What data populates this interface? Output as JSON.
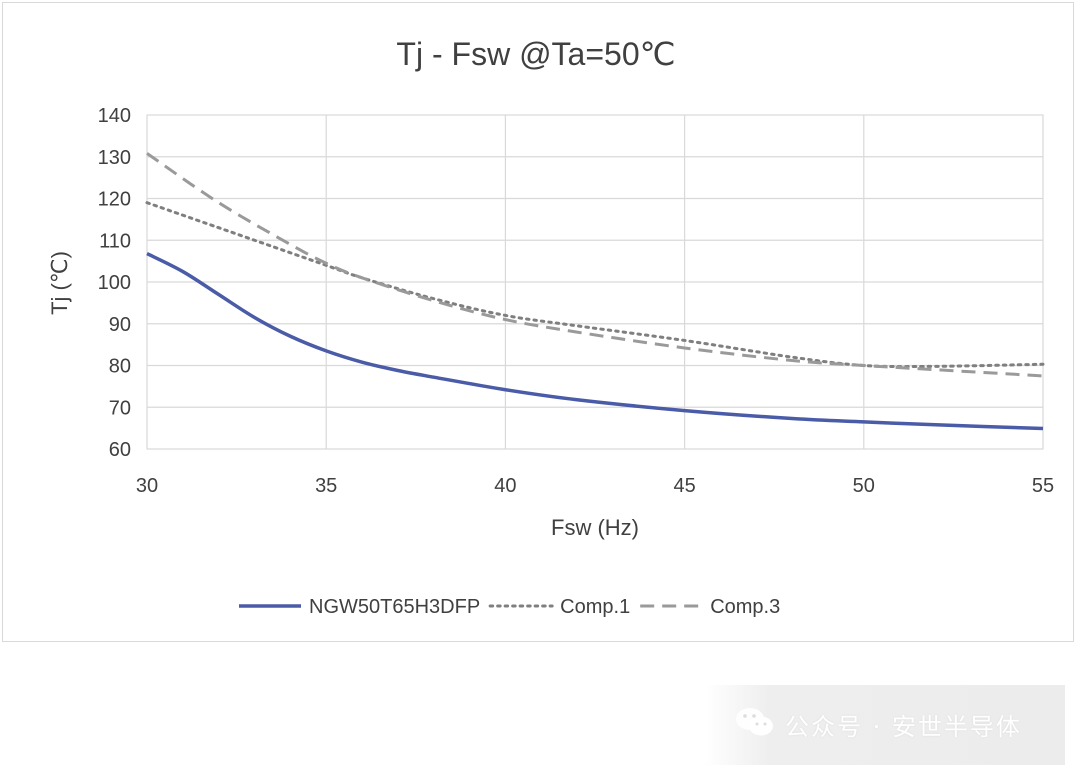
{
  "chart_data": {
    "type": "line",
    "title": "Tj - Fsw @Ta=50℃",
    "xlabel": "Fsw (Hz)",
    "ylabel": "Tj (℃)",
    "xlim": [
      30,
      55
    ],
    "ylim": [
      60,
      140
    ],
    "xticks": [
      30,
      35,
      40,
      45,
      50,
      55
    ],
    "yticks": [
      60,
      70,
      80,
      90,
      100,
      110,
      120,
      130,
      140
    ],
    "grid": true,
    "legend_position": "bottom",
    "series": [
      {
        "name": "NGW50T65H3DFP",
        "color": "#4a5ba8",
        "style": "solid",
        "x": [
          30,
          31,
          32,
          33,
          34,
          35,
          36,
          37,
          38,
          40,
          42,
          45,
          48,
          50,
          52,
          55
        ],
        "y": [
          106.8,
          102.5,
          97,
          91.5,
          87,
          83.5,
          80.8,
          78.8,
          77.2,
          74.2,
          71.8,
          69.2,
          67.3,
          66.5,
          65.8,
          64.9
        ]
      },
      {
        "name": "Comp.1",
        "color": "#7f7f7f",
        "style": "dotted",
        "x": [
          30,
          32,
          34,
          35,
          36,
          38,
          40,
          42,
          45,
          48,
          50,
          52,
          55
        ],
        "y": [
          119,
          113,
          107,
          104,
          101,
          96,
          92,
          89.5,
          86,
          82,
          80,
          79.8,
          80.3
        ]
      },
      {
        "name": "Comp.3",
        "color": "#9a9a9a",
        "style": "dashed",
        "x": [
          30,
          32,
          34,
          35,
          36,
          38,
          40,
          42,
          45,
          48,
          50,
          52,
          55
        ],
        "y": [
          130.8,
          119,
          109,
          104.5,
          101,
          95.5,
          91,
          88,
          84.2,
          81.2,
          80,
          79,
          77.5
        ]
      }
    ]
  },
  "watermark": {
    "icon": "wechat-icon",
    "text": "公众号 · 安世半导体"
  }
}
